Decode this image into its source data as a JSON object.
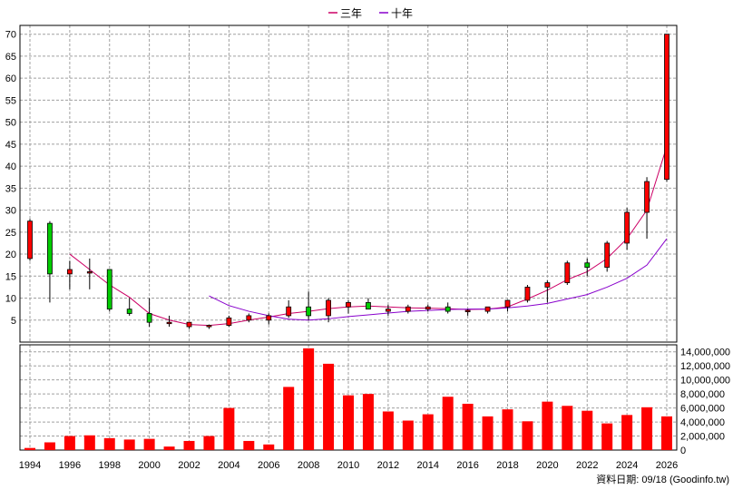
{
  "chart_data": {
    "type": "bar",
    "legend": [
      {
        "label": "三年",
        "color": "#cc0066"
      },
      {
        "label": "十年",
        "color": "#8800cc"
      }
    ],
    "price_axis": {
      "ylim": [
        0,
        72
      ],
      "ticks": [
        5,
        10,
        15,
        20,
        25,
        30,
        35,
        40,
        45,
        50,
        55,
        60,
        65,
        70
      ]
    },
    "volume_axis": {
      "ylim": [
        0,
        15000000
      ],
      "ticks": [
        0,
        2000000,
        4000000,
        6000000,
        8000000,
        10000000,
        12000000,
        14000000
      ],
      "tick_labels": [
        "0",
        "2,000,000",
        "4,000,000",
        "6,000,000",
        "8,000,000",
        "10,000,000",
        "12,000,000",
        "14,000,000"
      ]
    },
    "x_ticks": [
      "1994",
      "1996",
      "1998",
      "2000",
      "2002",
      "2004",
      "2006",
      "2008",
      "2010",
      "2012",
      "2014",
      "2016",
      "2018",
      "2020",
      "2022",
      "2024",
      "2026"
    ],
    "candles": [
      {
        "year": 1994,
        "open": 19,
        "high": 28,
        "low": 18.5,
        "close": 27.5
      },
      {
        "year": 1995,
        "open": 27,
        "high": 27.5,
        "low": 9,
        "close": 15.5
      },
      {
        "year": 1996,
        "open": 15.5,
        "high": 18.5,
        "low": 12,
        "close": 16.5
      },
      {
        "year": 1997,
        "open": 16,
        "high": 19,
        "low": 12,
        "close": 16
      },
      {
        "year": 1998,
        "open": 16.5,
        "high": 16.5,
        "low": 7,
        "close": 7.5
      },
      {
        "year": 1999,
        "open": 7.5,
        "high": 10,
        "low": 6,
        "close": 6.5
      },
      {
        "year": 2000,
        "open": 6.5,
        "high": 10,
        "low": 3.5,
        "close": 4.5
      },
      {
        "year": 2001,
        "open": 4.5,
        "high": 6,
        "low": 3.5,
        "close": 4.5
      },
      {
        "year": 2002,
        "open": 3.5,
        "high": 4.5,
        "low": 3,
        "close": 4.5
      },
      {
        "year": 2003,
        "open": 3.5,
        "high": 4,
        "low": 3,
        "close": 3.8
      },
      {
        "year": 2004,
        "open": 3.8,
        "high": 6,
        "low": 3.5,
        "close": 5.5
      },
      {
        "year": 2005,
        "open": 5,
        "high": 6.5,
        "low": 4.5,
        "close": 6
      },
      {
        "year": 2006,
        "open": 5,
        "high": 6.5,
        "low": 4,
        "close": 6
      },
      {
        "year": 2007,
        "open": 6,
        "high": 9.5,
        "low": 5.5,
        "close": 8
      },
      {
        "year": 2008,
        "open": 8,
        "high": 11.5,
        "low": 5,
        "close": 6
      },
      {
        "year": 2009,
        "open": 6,
        "high": 10,
        "low": 4.5,
        "close": 9.5
      },
      {
        "year": 2010,
        "open": 8,
        "high": 9.5,
        "low": 6.5,
        "close": 9
      },
      {
        "year": 2011,
        "open": 9,
        "high": 10,
        "low": 7.5,
        "close": 7.5
      },
      {
        "year": 2012,
        "open": 7,
        "high": 8.5,
        "low": 6,
        "close": 7.5
      },
      {
        "year": 2013,
        "open": 7,
        "high": 8.5,
        "low": 6.5,
        "close": 8
      },
      {
        "year": 2014,
        "open": 7.5,
        "high": 8.5,
        "low": 7,
        "close": 8
      },
      {
        "year": 2015,
        "open": 8,
        "high": 9,
        "low": 6.5,
        "close": 7
      },
      {
        "year": 2016,
        "open": 7,
        "high": 7.5,
        "low": 6,
        "close": 7.2
      },
      {
        "year": 2017,
        "open": 7,
        "high": 8,
        "low": 6.5,
        "close": 8
      },
      {
        "year": 2018,
        "open": 8,
        "high": 9.5,
        "low": 7,
        "close": 9.5
      },
      {
        "year": 2019,
        "open": 9.5,
        "high": 13,
        "low": 9,
        "close": 12.5
      },
      {
        "year": 2020,
        "open": 12.5,
        "high": 14,
        "low": 9,
        "close": 13.5
      },
      {
        "year": 2021,
        "open": 13.5,
        "high": 18.5,
        "low": 13,
        "close": 18
      },
      {
        "year": 2022,
        "open": 18,
        "high": 19,
        "low": 15,
        "close": 17
      },
      {
        "year": 2023,
        "open": 17,
        "high": 23,
        "low": 16,
        "close": 22.5
      },
      {
        "year": 2024,
        "open": 22.5,
        "high": 30.5,
        "low": 21,
        "close": 29.5
      },
      {
        "year": 2025,
        "open": 29.5,
        "high": 37.5,
        "low": 23.5,
        "close": 36.5
      },
      {
        "year": 2026,
        "open": 37,
        "high": 70,
        "low": 36.5,
        "close": 70
      }
    ],
    "ma_3yr": {
      "name": "三年",
      "points": [
        [
          1996,
          20
        ],
        [
          1997,
          16.5
        ],
        [
          1998,
          13
        ],
        [
          1999,
          10.2
        ],
        [
          2000,
          6.5
        ],
        [
          2001,
          5
        ],
        [
          2002,
          4
        ],
        [
          2003,
          3.8
        ],
        [
          2004,
          4.2
        ],
        [
          2005,
          5
        ],
        [
          2006,
          5.7
        ],
        [
          2007,
          6.5
        ],
        [
          2008,
          7
        ],
        [
          2009,
          7.6
        ],
        [
          2010,
          8
        ],
        [
          2011,
          8.2
        ],
        [
          2012,
          8
        ],
        [
          2013,
          7.8
        ],
        [
          2014,
          7.7
        ],
        [
          2015,
          7.6
        ],
        [
          2016,
          7.4
        ],
        [
          2017,
          7.5
        ],
        [
          2018,
          8
        ],
        [
          2019,
          9.8
        ],
        [
          2020,
          11.8
        ],
        [
          2021,
          14.2
        ],
        [
          2022,
          16
        ],
        [
          2023,
          19
        ],
        [
          2024,
          23.5
        ],
        [
          2025,
          30
        ],
        [
          2026,
          44.5
        ]
      ]
    },
    "ma_10yr": {
      "name": "十年",
      "points": [
        [
          2003,
          10.5
        ],
        [
          2004,
          8.3
        ],
        [
          2005,
          7
        ],
        [
          2006,
          6
        ],
        [
          2007,
          5.2
        ],
        [
          2008,
          5
        ],
        [
          2009,
          5.3
        ],
        [
          2010,
          5.8
        ],
        [
          2011,
          6.2
        ],
        [
          2012,
          6.6
        ],
        [
          2013,
          7
        ],
        [
          2014,
          7.2
        ],
        [
          2015,
          7.4
        ],
        [
          2016,
          7.5
        ],
        [
          2017,
          7.5
        ],
        [
          2018,
          7.8
        ],
        [
          2019,
          8.2
        ],
        [
          2020,
          8.8
        ],
        [
          2021,
          9.8
        ],
        [
          2022,
          10.8
        ],
        [
          2023,
          12.5
        ],
        [
          2024,
          14.5
        ],
        [
          2025,
          17.5
        ],
        [
          2026,
          23.5
        ]
      ]
    },
    "volume": [
      300000,
      1100000,
      2000000,
      2100000,
      1700000,
      1500000,
      1600000,
      500000,
      1300000,
      2000000,
      6000000,
      1300000,
      800000,
      9000000,
      14500000,
      12300000,
      7800000,
      8000000,
      5500000,
      4200000,
      5100000,
      7600000,
      6600000,
      4800000,
      5800000,
      4100000,
      6900000,
      6300000,
      5600000,
      3800000,
      5000000,
      6100000,
      4800000
    ],
    "footer_note": "資料日期: 09/18  (Goodinfo.tw)"
  }
}
